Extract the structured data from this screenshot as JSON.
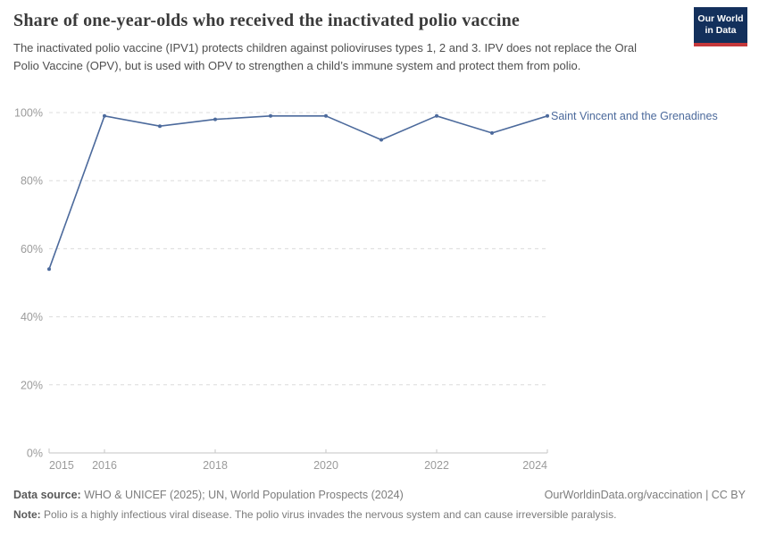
{
  "header": {
    "title": "Share of one-year-olds who received the inactivated polio vaccine",
    "subtitle": "The inactivated polio vaccine (IPV1) protects children against polioviruses types 1, 2 and 3. IPV does not replace the Oral Polio Vaccine (OPV), but is used with OPV to strengthen a child’s immune system and protect them from polio.",
    "logo": {
      "line1": "Our World",
      "line2": "in Data",
      "bg_color": "#13305c",
      "accent_color": "#c5383b"
    }
  },
  "chart_data": {
    "type": "line",
    "title": "Share of one-year-olds who received the inactivated polio vaccine",
    "x": [
      2015,
      2016,
      2017,
      2018,
      2019,
      2020,
      2021,
      2022,
      2023,
      2024
    ],
    "series": [
      {
        "name": "Saint Vincent and the Grenadines",
        "color": "#4c6a9c",
        "values": [
          54,
          99,
          96,
          98,
          99,
          99,
          92,
          99,
          94,
          99
        ]
      }
    ],
    "xlim": [
      2015,
      2024
    ],
    "ylim": [
      0,
      100
    ],
    "y_tick_labels": [
      "0%",
      "20%",
      "40%",
      "60%",
      "80%",
      "100%"
    ],
    "x_tick_labels": [
      2015,
      2016,
      2018,
      2020,
      2022,
      2024
    ],
    "grid": "horizontal-dashed",
    "legend_position": "label-at-line-end",
    "xlabel": "",
    "ylabel": ""
  },
  "footer": {
    "datasource": {
      "label": "Data source:",
      "text": " WHO & UNICEF (2025); UN, World Population Prospects (2024)"
    },
    "rights": "OurWorldinData.org/vaccination | CC BY",
    "note": {
      "label": "Note:",
      "text": " Polio is a highly infectious viral disease. The polio virus invades the nervous system and can cause irreversible paralysis."
    }
  }
}
